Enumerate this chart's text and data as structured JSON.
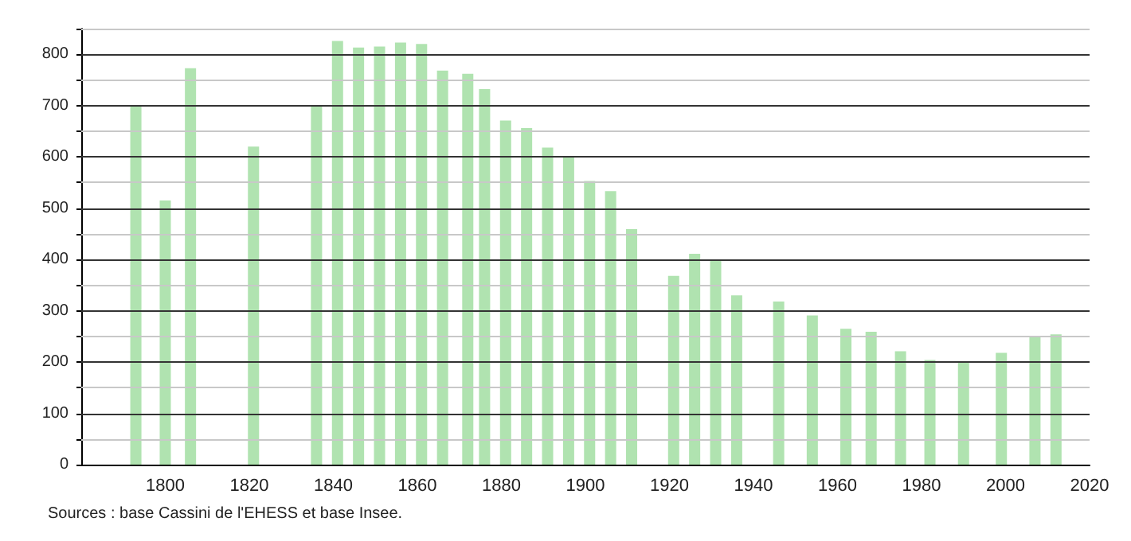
{
  "chart_data": {
    "type": "bar",
    "x": [
      1793,
      1800,
      1806,
      1821,
      1836,
      1841,
      1846,
      1851,
      1856,
      1861,
      1866,
      1872,
      1876,
      1881,
      1886,
      1891,
      1896,
      1901,
      1906,
      1911,
      1921,
      1926,
      1931,
      1936,
      1946,
      1954,
      1962,
      1968,
      1975,
      1982,
      1990,
      1999,
      2007,
      2012
    ],
    "values": [
      700,
      515,
      773,
      620,
      700,
      826,
      813,
      815,
      823,
      820,
      768,
      762,
      732,
      671,
      656,
      618,
      599,
      553,
      533,
      459,
      368,
      411,
      400,
      330,
      318,
      291,
      265,
      259,
      221,
      204,
      201,
      218,
      249,
      254
    ],
    "color": "#b0e3b0",
    "xlim": [
      1780,
      2020
    ],
    "xticks": [
      1800,
      1820,
      1840,
      1860,
      1880,
      1900,
      1920,
      1940,
      1960,
      1980,
      2000,
      2020
    ],
    "ylim": [
      0,
      850
    ],
    "yticks": [
      0,
      {
        "value": 50,
        "label": null
      },
      100,
      {
        "value": 150,
        "label": null
      },
      200,
      {
        "value": 250,
        "label": null
      },
      300,
      {
        "value": 350,
        "label": null
      },
      400,
      {
        "value": 450,
        "label": null
      },
      500,
      {
        "value": 550,
        "label": null
      },
      600,
      {
        "value": 650,
        "label": null
      },
      700,
      {
        "value": 750,
        "label": null
      },
      800,
      {
        "value": 850,
        "label": null
      }
    ],
    "grid": "y",
    "annotations": [
      "Sources : base Cassini de l'EHESS et base Insee."
    ]
  }
}
